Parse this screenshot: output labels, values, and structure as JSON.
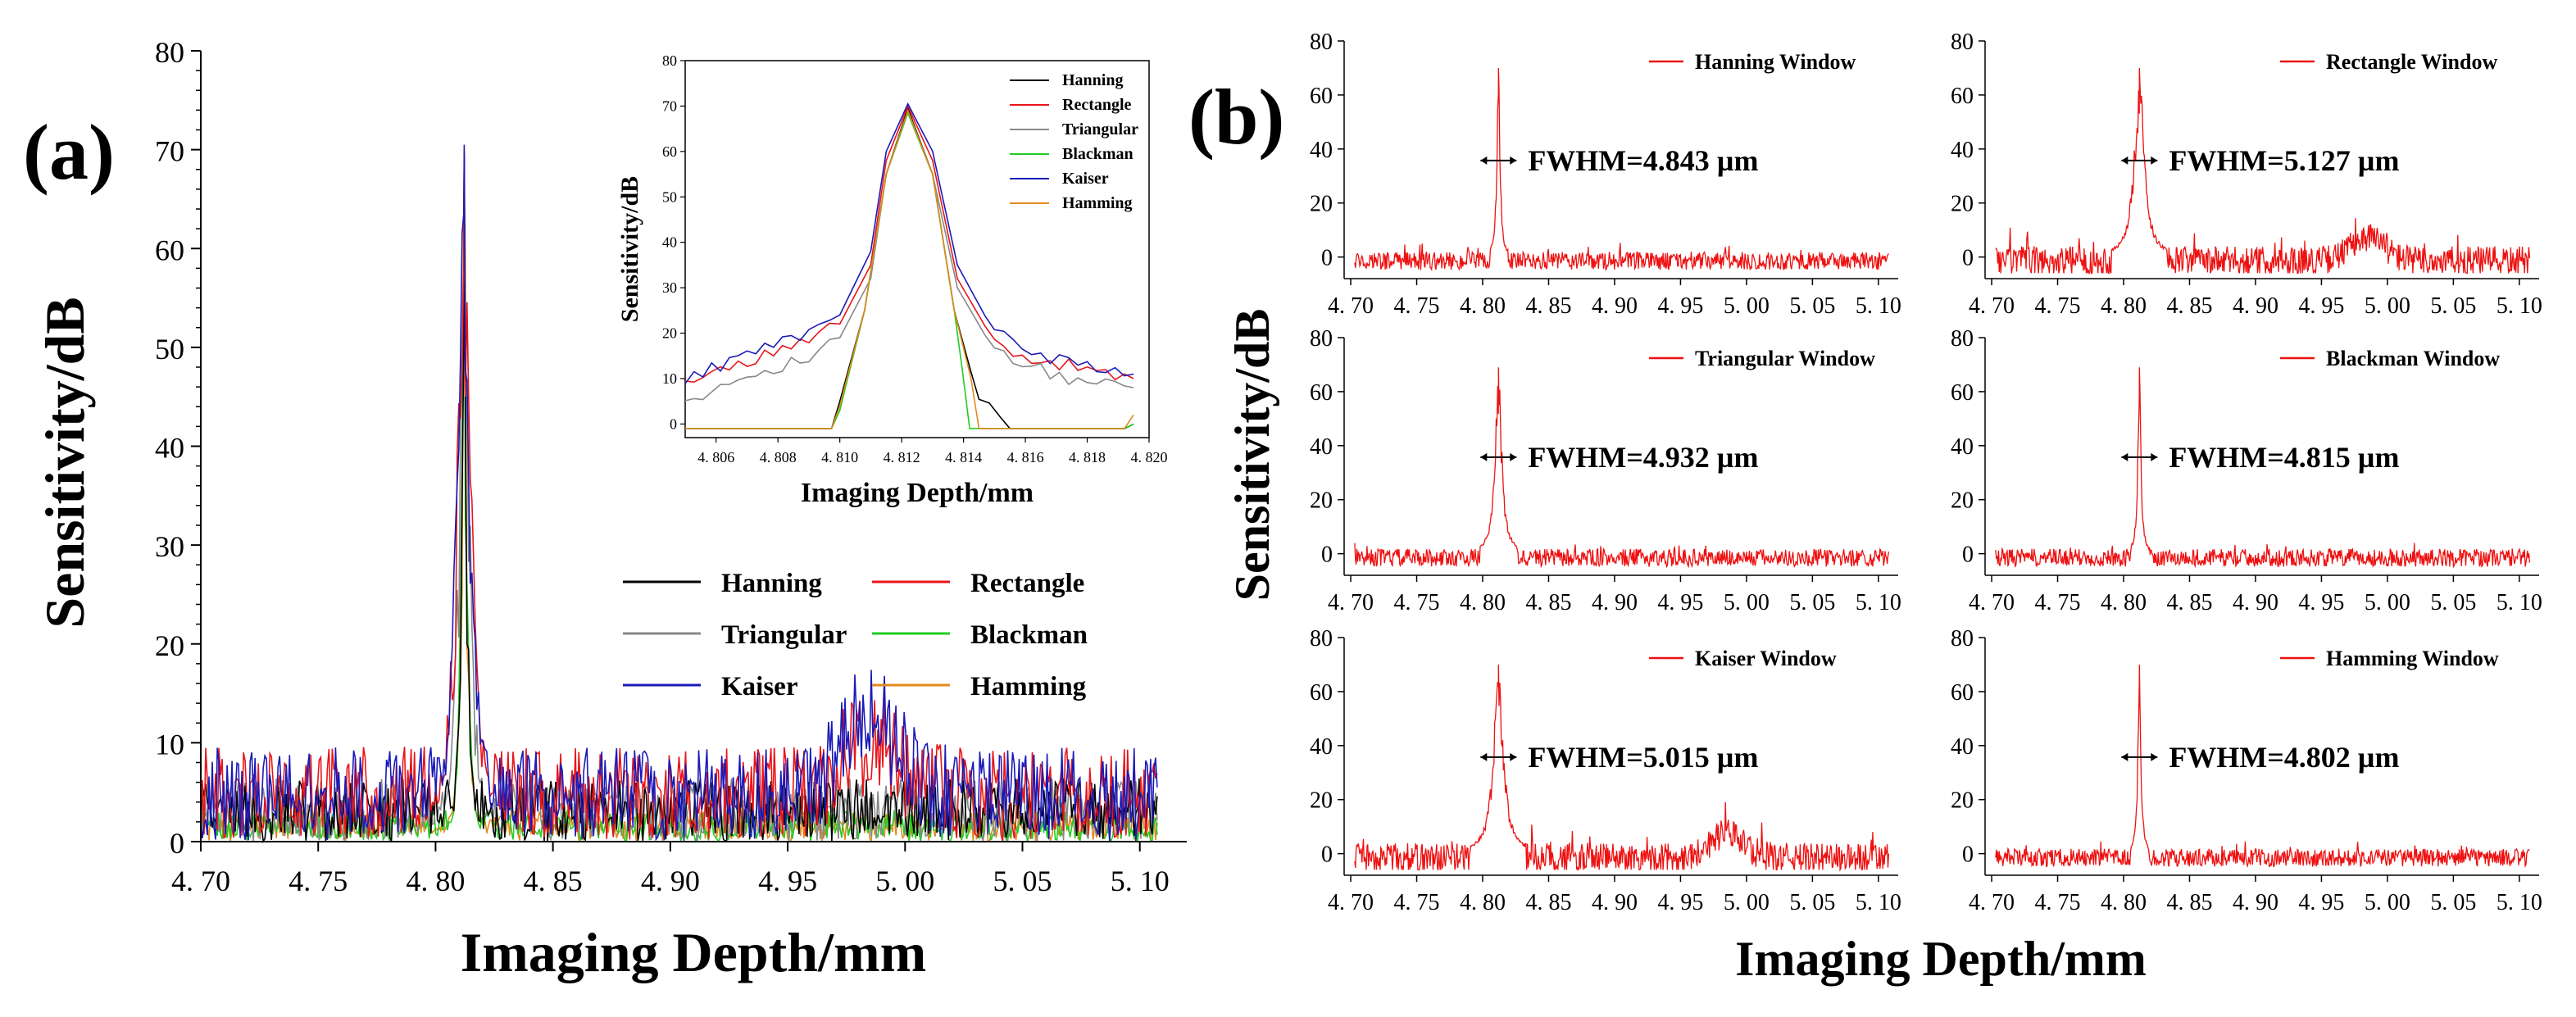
{
  "chart_data": [
    {
      "panel_label": "(a)",
      "type": "line",
      "xlabel": "Imaging Depth/mm",
      "ylabel": "Sensitivity/dB",
      "xlim": [
        4.7,
        5.12
      ],
      "ylim": [
        0,
        80
      ],
      "x_ticks": [
        4.7,
        4.75,
        4.8,
        4.85,
        4.9,
        4.95,
        5.0,
        5.05,
        5.1
      ],
      "x_tick_labels": [
        "4. 70",
        "4. 75",
        "4. 80",
        "4. 85",
        "4. 90",
        "4. 95",
        "5. 00",
        "5. 05",
        "5. 10"
      ],
      "y_ticks": [
        0,
        10,
        20,
        30,
        40,
        50,
        60,
        70,
        80
      ],
      "y_tick_labels": [
        "0",
        "10",
        "20",
        "30",
        "40",
        "50",
        "60",
        "70",
        "80"
      ],
      "legend_position": "lower-right",
      "series": [
        {
          "name": "Hanning",
          "color": "#000000",
          "peak_x": 4.8122,
          "peak_y": 69.5,
          "noise_floor": 4
        },
        {
          "name": "Rectangle",
          "color": "#e8151b",
          "peak_x": 4.8122,
          "peak_y": 70.0,
          "noise_floor": 6
        },
        {
          "name": "Triangular",
          "color": "#888888",
          "peak_x": 4.8122,
          "peak_y": 68.5,
          "noise_floor": 4
        },
        {
          "name": "Blackman",
          "color": "#22cc22",
          "peak_x": 4.8122,
          "peak_y": 68.5,
          "noise_floor": 2
        },
        {
          "name": "Kaiser",
          "color": "#1a1ab8",
          "peak_x": 4.8122,
          "peak_y": 70.5,
          "noise_floor": 6
        },
        {
          "name": "Hamming",
          "color": "#e08a1e",
          "peak_x": 4.8122,
          "peak_y": 69.0,
          "noise_floor": 2
        }
      ],
      "inset": {
        "type": "line",
        "xlabel": "Imaging Depth/mm",
        "ylabel": "Sensitivity/dB",
        "xlim": [
          4.805,
          4.82
        ],
        "ylim": [
          -3,
          80
        ],
        "x_ticks": [
          4.806,
          4.808,
          4.81,
          4.812,
          4.814,
          4.816,
          4.818,
          4.82
        ],
        "x_tick_labels": [
          "4. 806",
          "4. 808",
          "4. 810",
          "4. 812",
          "4. 814",
          "4. 816",
          "4. 818",
          "4. 820"
        ],
        "y_ticks": [
          0,
          10,
          20,
          30,
          40,
          50,
          60,
          70,
          80
        ],
        "y_tick_labels": [
          "0",
          "10",
          "20",
          "30",
          "40",
          "50",
          "60",
          "70",
          "80"
        ],
        "legend_position": "top-right",
        "series": [
          {
            "name": "Hanning",
            "x": [
              4.805,
              4.8075,
              4.8092,
              4.81,
              4.8108,
              4.8115,
              4.8122,
              4.813,
              4.8137,
              4.8145,
              4.8155,
              4.8175,
              4.8195
            ],
            "y": [
              0,
              0,
              0,
              5,
              25,
              55,
              69.5,
              55,
              25,
              5,
              0,
              0,
              0
            ]
          },
          {
            "name": "Rectangle",
            "x": [
              4.805,
              4.807,
              4.809,
              4.81,
              4.811,
              4.8115,
              4.8122,
              4.813,
              4.8138,
              4.815,
              4.8165,
              4.818,
              4.8195
            ],
            "y": [
              10,
              14,
              19,
              22,
              35,
              58,
              70,
              58,
              32,
              18,
              14,
              12,
              10
            ]
          },
          {
            "name": "Triangular",
            "x": [
              4.805,
              4.807,
              4.809,
              4.81,
              4.811,
              4.8115,
              4.8122,
              4.813,
              4.8138,
              4.815,
              4.8165,
              4.818,
              4.8195
            ],
            "y": [
              5,
              10,
              15,
              19,
              32,
              55,
              68.5,
              55,
              30,
              16,
              12,
              9,
              8
            ]
          },
          {
            "name": "Blackman",
            "x": [
              4.805,
              4.8092,
              4.81,
              4.8108,
              4.8115,
              4.8122,
              4.813,
              4.8137,
              4.8142,
              4.8195
            ],
            "y": [
              0,
              0,
              3,
              25,
              55,
              68.5,
              55,
              25,
              0,
              0
            ]
          },
          {
            "name": "Kaiser",
            "x": [
              4.805,
              4.807,
              4.809,
              4.81,
              4.811,
              4.8115,
              4.8122,
              4.813,
              4.8138,
              4.815,
              4.8165,
              4.818,
              4.8195
            ],
            "y": [
              10,
              15,
              20,
              24,
              38,
              60,
              70.5,
              60,
              35,
              20,
              15,
              13,
              11
            ]
          },
          {
            "name": "Hamming",
            "x": [
              4.805,
              4.8092,
              4.81,
              4.8108,
              4.8115,
              4.8122,
              4.813,
              4.8137,
              4.8145,
              4.8195
            ],
            "y": [
              2,
              2,
              4,
              25,
              55,
              69,
              55,
              25,
              3,
              2
            ]
          }
        ]
      }
    },
    {
      "panel_label": "(b)",
      "type": "line",
      "shared_xlabel": "Imaging Depth/mm",
      "shared_ylabel": "Sensitivity/dB",
      "xlim": [
        4.695,
        5.115
      ],
      "ylim": [
        -8,
        80
      ],
      "x_ticks": [
        4.7,
        4.75,
        4.8,
        4.85,
        4.9,
        4.95,
        5.0,
        5.05,
        5.1
      ],
      "x_tick_labels": [
        "4. 70",
        "4. 75",
        "4. 80",
        "4. 85",
        "4. 90",
        "4. 95",
        "5. 00",
        "5. 05",
        "5. 10"
      ],
      "y_ticks": [
        0,
        20,
        40,
        60,
        80
      ],
      "y_tick_labels": [
        "0",
        "20",
        "40",
        "60",
        "80"
      ],
      "line_color": "#ee1111",
      "subplots": [
        {
          "name": "Hanning Window",
          "fwhm_label": "FWHM=4.843 µm",
          "peak_x": 4.812,
          "peak_y": 70,
          "fwhm_um": 4.843,
          "noise_floor": 6
        },
        {
          "name": "Rectangle Window",
          "fwhm_label": "FWHM=5.127 µm",
          "peak_x": 4.812,
          "peak_y": 70,
          "fwhm_um": 5.127,
          "noise_floor": 10
        },
        {
          "name": "Triangular Window",
          "fwhm_label": "FWHM=4.932 µm",
          "peak_x": 4.812,
          "peak_y": 69,
          "fwhm_um": 4.932,
          "noise_floor": 6
        },
        {
          "name": "Blackman Window",
          "fwhm_label": "FWHM=4.815 µm",
          "peak_x": 4.812,
          "peak_y": 69,
          "fwhm_um": 4.815,
          "noise_floor": 6
        },
        {
          "name": "Kaiser Window",
          "fwhm_label": "FWHM=5.015 µm",
          "peak_x": 4.812,
          "peak_y": 70,
          "fwhm_um": 5.015,
          "noise_floor": 10
        },
        {
          "name": "Hamming Window",
          "fwhm_label": "FWHM=4.802 µm",
          "peak_x": 4.812,
          "peak_y": 70,
          "fwhm_um": 4.802,
          "noise_floor": 6
        }
      ]
    }
  ]
}
